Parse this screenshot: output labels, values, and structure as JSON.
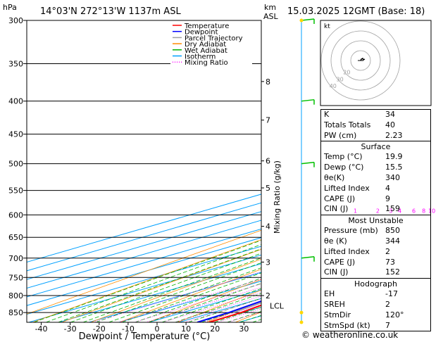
{
  "header": {
    "unit_hpa": "hPa",
    "location": "14°03'N  272°13'W  1137m  ASL",
    "unit_km": "km",
    "unit_asl": "ASL",
    "datetime": "15.03.2025  12GMT  (Base: 18)"
  },
  "legend": [
    {
      "label": "Temperature",
      "color": "#ff0000",
      "style": "solid"
    },
    {
      "label": "Dewpoint",
      "color": "#0000ff",
      "style": "solid"
    },
    {
      "label": "Parcel Trajectory",
      "color": "#a0a0a0",
      "style": "solid"
    },
    {
      "label": "Dry Adiabat",
      "color": "#ff8c00",
      "style": "solid"
    },
    {
      "label": "Wet Adiabat",
      "color": "#00b000",
      "style": "solid"
    },
    {
      "label": "Isotherm",
      "color": "#00a0ff",
      "style": "solid"
    },
    {
      "label": "Mixing Ratio",
      "color": "#ff00ff",
      "style": "dotted"
    }
  ],
  "chart_data": {
    "type": "skew-t log-p",
    "xlabel": "Dewpoint / Temperature (°C)",
    "ylabel": "Mixing Ratio (g/kg)",
    "x_ticks": [
      -40,
      -30,
      -20,
      -10,
      0,
      10,
      20,
      30
    ],
    "pressure_levels": [
      300,
      350,
      400,
      450,
      500,
      550,
      600,
      650,
      700,
      750,
      800,
      850
    ],
    "km_ticks": [
      {
        "km": "8",
        "p": 373
      },
      {
        "km": "7",
        "p": 428
      },
      {
        "km": "6",
        "p": 495
      },
      {
        "km": "5",
        "p": 545
      },
      {
        "km": "4",
        "p": 625
      },
      {
        "km": "3",
        "p": 710
      },
      {
        "km": "2",
        "p": 800
      }
    ],
    "lcl": {
      "label": "LCL",
      "p": 830
    },
    "mixing_ratio_labels": [
      {
        "w": "1",
        "x": -10.5
      },
      {
        "w": "2",
        "x": -3
      },
      {
        "w": "3",
        "x": 1.3
      },
      {
        "w": "4",
        "x": 4.3
      },
      {
        "w": "6",
        "x": 9
      },
      {
        "w": "8",
        "x": 12.3
      },
      {
        "w": "10",
        "x": 15
      },
      {
        "w": "15",
        "x": 21
      },
      {
        "w": "20",
        "x": 25
      },
      {
        "w": "25",
        "x": 27.6
      }
    ],
    "temperature": [
      [
        880,
        20.1
      ],
      [
        850,
        19.5
      ],
      [
        800,
        15.6
      ],
      [
        750,
        11.5
      ],
      [
        700,
        8.7
      ],
      [
        650,
        6.5
      ],
      [
        600,
        3.2
      ],
      [
        550,
        -0.5
      ],
      [
        500,
        -4.4
      ],
      [
        450,
        -10
      ],
      [
        400,
        -18
      ],
      [
        350,
        -26.5
      ],
      [
        300,
        -34
      ]
    ],
    "dewpoint": [
      [
        880,
        16.1
      ],
      [
        850,
        15.4
      ],
      [
        800,
        11.9
      ],
      [
        750,
        8.3
      ],
      [
        700,
        6.7
      ],
      [
        650,
        2.1
      ],
      [
        600,
        -22
      ],
      [
        550,
        -40
      ],
      [
        500,
        -47
      ],
      [
        450,
        -47.2
      ],
      [
        400,
        -53
      ],
      [
        350,
        -62
      ],
      [
        300,
        -62.3
      ]
    ],
    "parcel": [
      [
        850,
        16.8
      ],
      [
        800,
        13.6
      ],
      [
        750,
        10.2
      ],
      [
        700,
        6.6
      ],
      [
        650,
        2.7
      ],
      [
        600,
        -1.6
      ],
      [
        550,
        -6.3
      ],
      [
        500,
        -11.6
      ],
      [
        450,
        -17.6
      ],
      [
        400,
        -24.6
      ],
      [
        350,
        -33.2
      ],
      [
        300,
        -43
      ]
    ],
    "xlim": [
      -45,
      36
    ],
    "ylim": [
      880,
      300
    ],
    "grid": true
  },
  "hodograph": {
    "label": "kt",
    "ring_labels": [
      "40",
      "30",
      "20"
    ],
    "winds": [
      [
        0,
        0
      ],
      [
        1,
        2
      ],
      [
        3,
        3
      ],
      [
        4,
        1
      ],
      [
        6,
        2
      ]
    ]
  },
  "wind_barbs_p": [
    300,
    400,
    500,
    700,
    850,
    880
  ],
  "indices": [
    {
      "label": "K",
      "value": "34"
    },
    {
      "label": "Totals Totals",
      "value": "40"
    },
    {
      "label": "PW (cm)",
      "value": "2.23"
    }
  ],
  "surface": {
    "title": "Surface",
    "rows": [
      {
        "label": "Temp (°C)",
        "value": "19.9"
      },
      {
        "label": "Dewp (°C)",
        "value": "15.5"
      },
      {
        "label": "θe(K)",
        "value": "340"
      },
      {
        "label": "Lifted Index",
        "value": "4"
      },
      {
        "label": "CAPE (J)",
        "value": "9"
      },
      {
        "label": "CIN (J)",
        "value": "159"
      }
    ]
  },
  "most_unstable": {
    "title": "Most Unstable",
    "rows": [
      {
        "label": "Pressure (mb)",
        "value": "850"
      },
      {
        "label": "θe (K)",
        "value": "344"
      },
      {
        "label": "Lifted Index",
        "value": "2"
      },
      {
        "label": "CAPE (J)",
        "value": "73"
      },
      {
        "label": "CIN (J)",
        "value": "152"
      }
    ]
  },
  "hodograph_table": {
    "title": "Hodograph",
    "rows": [
      {
        "label": "EH",
        "value": "-17"
      },
      {
        "label": "SREH",
        "value": "2"
      },
      {
        "label": "StmDir",
        "value": "120°"
      },
      {
        "label": "StmSpd (kt)",
        "value": "7"
      }
    ]
  },
  "footer": "© weatheronline.co.uk"
}
